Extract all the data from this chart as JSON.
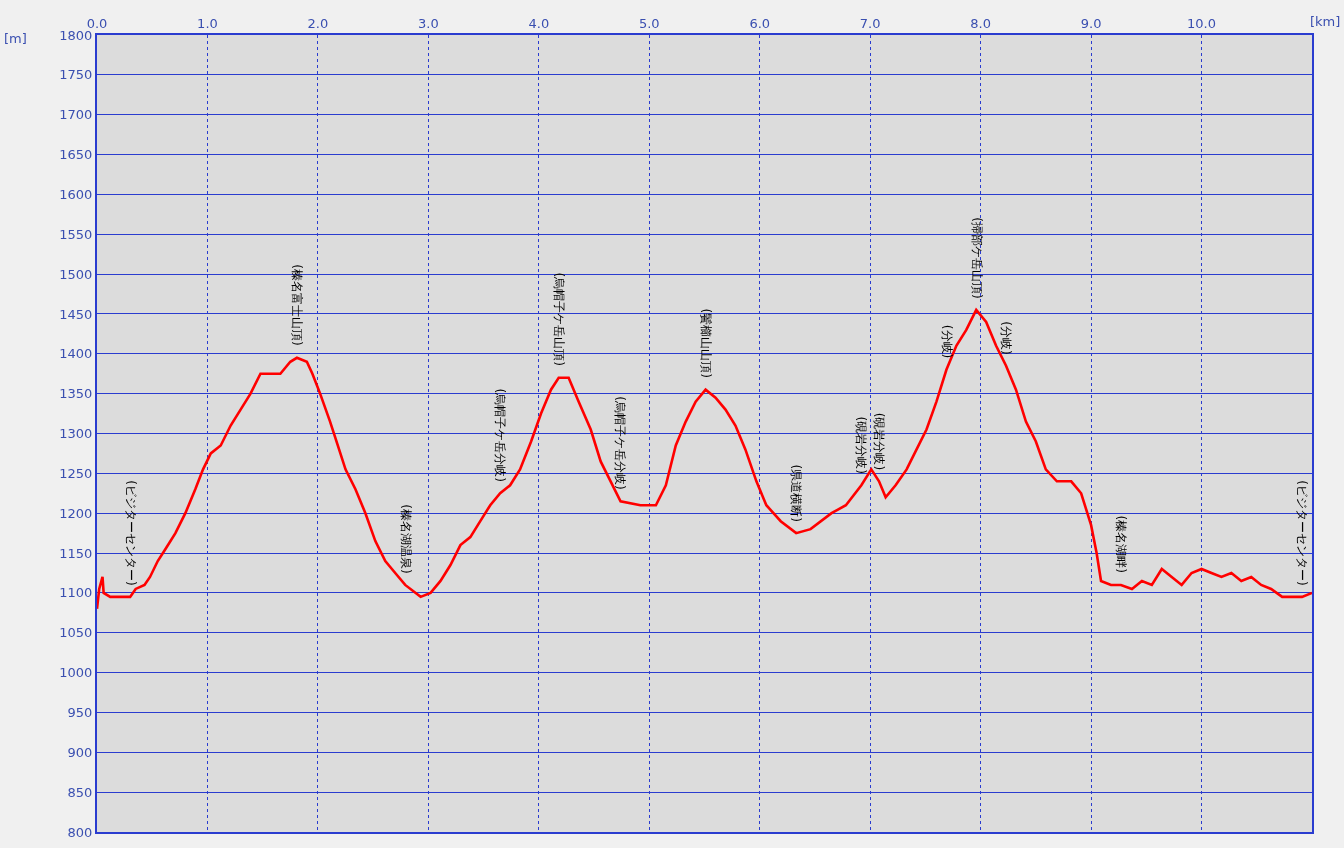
{
  "chart_data": {
    "type": "line",
    "xlabel": "[km]",
    "ylabel": "[m]",
    "x": [
      0.0,
      0.02,
      0.05,
      0.06,
      0.12,
      0.21,
      0.3,
      0.35,
      0.43,
      0.48,
      0.55,
      0.62,
      0.71,
      0.8,
      0.89,
      0.96,
      1.03,
      1.12,
      1.21,
      1.3,
      1.39,
      1.48,
      1.57,
      1.66,
      1.75,
      1.81,
      1.9,
      1.95,
      2.02,
      2.11,
      2.18,
      2.25,
      2.34,
      2.43,
      2.52,
      2.61,
      2.7,
      2.79,
      2.93,
      3.02,
      3.11,
      3.2,
      3.29,
      3.38,
      3.47,
      3.56,
      3.65,
      3.74,
      3.83,
      3.93,
      4.02,
      4.11,
      4.18,
      4.27,
      4.36,
      4.47,
      4.56,
      4.65,
      4.74,
      4.92,
      5.06,
      5.15,
      5.24,
      5.33,
      5.42,
      5.51,
      5.6,
      5.69,
      5.78,
      5.87,
      5.97,
      6.06,
      6.19,
      6.33,
      6.46,
      6.65,
      6.78,
      6.92,
      7.01,
      7.08,
      7.14,
      7.23,
      7.33,
      7.42,
      7.51,
      7.6,
      7.69,
      7.78,
      7.87,
      7.96,
      8.05,
      8.14,
      8.23,
      8.32,
      8.41,
      8.5,
      8.59,
      8.69,
      8.82,
      8.91,
      9.0,
      9.05,
      9.09,
      9.18,
      9.27,
      9.37,
      9.46,
      9.55,
      9.64,
      9.73,
      9.82,
      9.91,
      10.0,
      10.09,
      10.18,
      10.27,
      10.36,
      10.45,
      10.54,
      10.63,
      10.73,
      10.82,
      10.91,
      11.0
    ],
    "series": [
      {
        "color": "#ff0000",
        "values": [
          1080,
          1105,
          1120,
          1100,
          1095,
          1095,
          1095,
          1105,
          1110,
          1120,
          1140,
          1155,
          1175,
          1200,
          1230,
          1255,
          1275,
          1285,
          1310,
          1330,
          1350,
          1375,
          1375,
          1375,
          1390,
          1395,
          1390,
          1375,
          1350,
          1315,
          1285,
          1255,
          1230,
          1200,
          1165,
          1140,
          1125,
          1110,
          1095,
          1100,
          1115,
          1135,
          1160,
          1170,
          1190,
          1210,
          1225,
          1235,
          1255,
          1290,
          1325,
          1355,
          1370,
          1370,
          1340,
          1305,
          1265,
          1240,
          1215,
          1210,
          1210,
          1235,
          1285,
          1315,
          1340,
          1355,
          1345,
          1330,
          1310,
          1280,
          1240,
          1210,
          1190,
          1175,
          1180,
          1200,
          1210,
          1235,
          1255,
          1240,
          1220,
          1235,
          1255,
          1280,
          1305,
          1340,
          1380,
          1410,
          1430,
          1455,
          1440,
          1410,
          1385,
          1355,
          1315,
          1290,
          1255,
          1240,
          1240,
          1225,
          1185,
          1150,
          1115,
          1110,
          1110,
          1105,
          1115,
          1110,
          1130,
          1120,
          1110,
          1125,
          1130,
          1125,
          1120,
          1125,
          1115,
          1120,
          1110,
          1105,
          1095,
          1095,
          1095,
          1100
        ]
      }
    ],
    "xlim": [
      0,
      11.0
    ],
    "xticks": [
      {
        "value": 0,
        "label": "0.0"
      },
      {
        "value": 1,
        "label": "1.0"
      },
      {
        "value": 2,
        "label": "2.0"
      },
      {
        "value": 3,
        "label": "3.0"
      },
      {
        "value": 4,
        "label": "4.0"
      },
      {
        "value": 5,
        "label": "5.0"
      },
      {
        "value": 6,
        "label": "6.0"
      },
      {
        "value": 7,
        "label": "7.0"
      },
      {
        "value": 8,
        "label": "8.0"
      },
      {
        "value": 9,
        "label": "9.0"
      },
      {
        "value": 10,
        "label": "10.0"
      }
    ],
    "ylim": [
      800,
      1800
    ],
    "yticks": [
      800,
      850,
      900,
      950,
      1000,
      1050,
      1100,
      1150,
      1200,
      1250,
      1300,
      1350,
      1400,
      1450,
      1500,
      1550,
      1600,
      1650,
      1700,
      1750,
      1800
    ],
    "grid": true,
    "marker": "none",
    "line_style": "solid",
    "annotations": [
      {
        "text": "(ビジターセンター)",
        "x": 0.3,
        "y": 1095
      },
      {
        "text": "(榛名富士山頂)",
        "x": 1.81,
        "y": 1395
      },
      {
        "text": "(榛名湖温泉)",
        "x": 2.79,
        "y": 1110
      },
      {
        "text": "(烏帽子ケ岳分岐)",
        "x": 3.65,
        "y": 1225
      },
      {
        "text": "(烏帽子ケ岳山頂)",
        "x": 4.18,
        "y": 1370
      },
      {
        "text": "(烏帽子ケ岳分岐)",
        "x": 4.74,
        "y": 1215
      },
      {
        "text": "(鬢櫛山山頂)",
        "x": 5.51,
        "y": 1355
      },
      {
        "text": "(県道横断)",
        "x": 6.33,
        "y": 1175
      },
      {
        "text": "(硯岩分岐)",
        "x": 6.92,
        "y": 1235
      },
      {
        "text": "(硯岩分岐)",
        "x": 7.08,
        "y": 1240
      },
      {
        "text": "(分岐)",
        "x": 7.69,
        "y": 1380
      },
      {
        "text": "(掃部ケ岳山頂)",
        "x": 7.96,
        "y": 1455
      },
      {
        "text": "(分岐)",
        "x": 8.23,
        "y": 1385
      },
      {
        "text": "(榛名湖畔)",
        "x": 9.27,
        "y": 1110
      },
      {
        "text": "(ビジターセンター)",
        "x": 10.91,
        "y": 1095
      }
    ]
  }
}
